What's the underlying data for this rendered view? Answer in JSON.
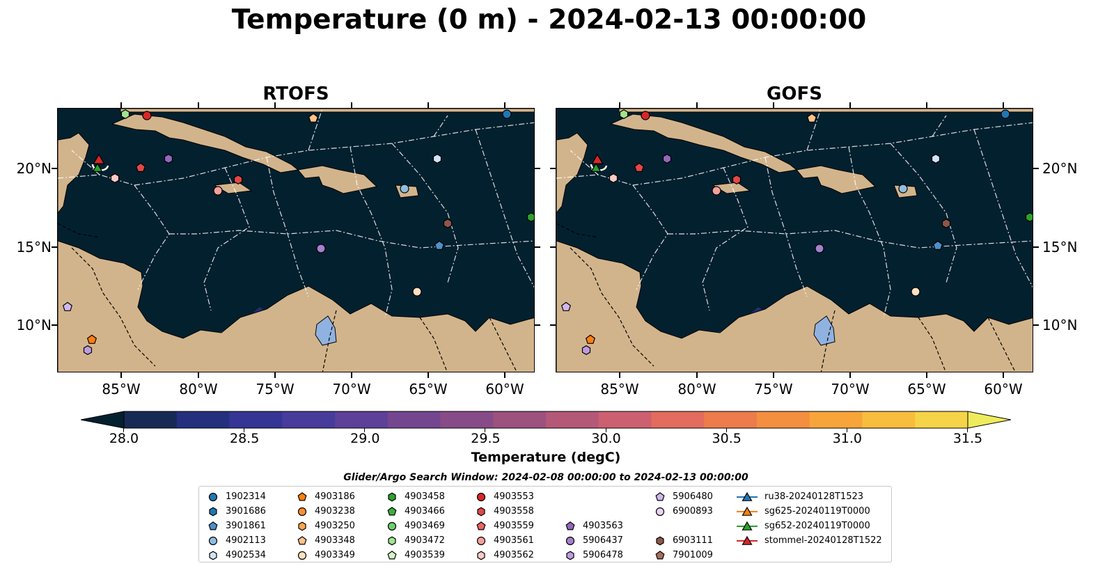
{
  "title": "Temperature (0 m) - 2024-02-13 00:00:00",
  "panels": [
    {
      "title": "RTOFS"
    },
    {
      "title": "GOFS"
    }
  ],
  "axes": {
    "x_ticks": [
      "85°W",
      "80°W",
      "75°W",
      "70°W",
      "65°W",
      "60°W"
    ],
    "y_ticks": [
      "20°N",
      "15°N",
      "10°N"
    ]
  },
  "colorbar": {
    "ticks": [
      "28.0",
      "28.5",
      "29.0",
      "29.5",
      "30.0",
      "30.5",
      "31.0",
      "31.5"
    ],
    "label": "Temperature (degC)",
    "range": [
      28.0,
      31.5
    ],
    "colors": [
      "#03202f",
      "#172a56",
      "#242f7e",
      "#343594",
      "#473b9b",
      "#5d4097",
      "#73468f",
      "#874b87",
      "#9c517f",
      "#b45878",
      "#cc6070",
      "#e26c5e",
      "#ec7c4c",
      "#f38f3f",
      "#f7a53a",
      "#f8bd3d",
      "#f5d447",
      "#eeec5c"
    ]
  },
  "search_window": "Glider/Argo Search Window: 2024-02-08 00:00:00 to 2024-02-13 00:00:00",
  "legend": [
    {
      "label": "1902314",
      "marker": "circle",
      "color": "#1f77b4"
    },
    {
      "label": "3901686",
      "marker": "hexagon",
      "color": "#1f77b4"
    },
    {
      "label": "3901861",
      "marker": "pentagon",
      "color": "#4e90c8"
    },
    {
      "label": "4902113",
      "marker": "circle",
      "color": "#8fbde0"
    },
    {
      "label": "4902534",
      "marker": "hexagon",
      "color": "#cfe4f6"
    },
    {
      "label": "4903186",
      "marker": "pentagon",
      "color": "#ff7f0e"
    },
    {
      "label": "4903238",
      "marker": "circle",
      "color": "#ff8f2e"
    },
    {
      "label": "4903250",
      "marker": "hexagon",
      "color": "#ffa54f"
    },
    {
      "label": "4903348",
      "marker": "pentagon",
      "color": "#ffc28a"
    },
    {
      "label": "4903349",
      "marker": "circle",
      "color": "#ffe0c0"
    },
    {
      "label": "4903458",
      "marker": "hexagon",
      "color": "#2ca02c"
    },
    {
      "label": "4903466",
      "marker": "pentagon",
      "color": "#3cb03c"
    },
    {
      "label": "4903469",
      "marker": "circle",
      "color": "#6cd06c"
    },
    {
      "label": "4903472",
      "marker": "hexagon",
      "color": "#a0e490"
    },
    {
      "label": "4903539",
      "marker": "pentagon",
      "color": "#d4f6c8"
    },
    {
      "label": "4903553",
      "marker": "circle",
      "color": "#d62728"
    },
    {
      "label": "4903558",
      "marker": "hexagon",
      "color": "#e04848"
    },
    {
      "label": "4903559",
      "marker": "pentagon",
      "color": "#ea6464"
    },
    {
      "label": "4903561",
      "marker": "circle",
      "color": "#f4a09a"
    },
    {
      "label": "4903562",
      "marker": "hexagon",
      "color": "#fbcac4"
    },
    {
      "label": "4903563",
      "marker": "pentagon",
      "color": "#9467bd"
    },
    {
      "label": "5906437",
      "marker": "circle",
      "color": "#a580cc"
    },
    {
      "label": "5906478",
      "marker": "hexagon",
      "color": "#bb9ddf"
    },
    {
      "label": "5906480",
      "marker": "pentagon",
      "color": "#d0b8ef"
    },
    {
      "label": "6900893",
      "marker": "circle",
      "color": "#ecd2f6"
    },
    {
      "label": "6903111",
      "marker": "hexagon",
      "color": "#8c564b"
    },
    {
      "label": "7901009",
      "marker": "pentagon",
      "color": "#a86e60"
    },
    {
      "label": "ru38-20240128T1523",
      "marker": "triangle-line",
      "color": "#1f77b4"
    },
    {
      "label": "sg625-20240119T0000",
      "marker": "triangle-line",
      "color": "#ff7f0e"
    },
    {
      "label": "sg652-20240119T0000",
      "marker": "triangle-line",
      "color": "#2ca02c"
    },
    {
      "label": "stommel-20240128T1522",
      "marker": "triangle-line",
      "color": "#d62728"
    }
  ],
  "map_colors": {
    "ocean": "#03202f",
    "land": "#d2b48c",
    "lake": "#8fb2e0"
  }
}
